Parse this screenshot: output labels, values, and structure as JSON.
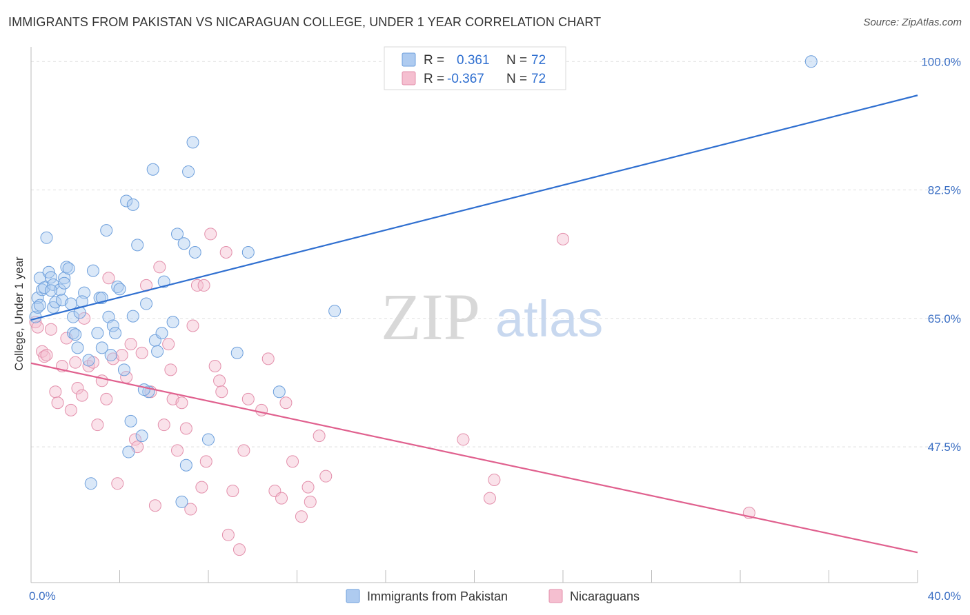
{
  "title": "IMMIGRANTS FROM PAKISTAN VS NICARAGUAN COLLEGE, UNDER 1 YEAR CORRELATION CHART",
  "source": "Source: ZipAtlas.com",
  "colors": {
    "blue_fill": "#aecbf0",
    "blue_stroke": "#6d9fdc",
    "blue_line": "#2f6fd0",
    "pink_fill": "#f5bfd0",
    "pink_stroke": "#e38fab",
    "pink_line": "#e0608e",
    "axis_text": "#3b6fc4",
    "grid": "#dddddd"
  },
  "legend": {
    "rows": [
      {
        "r_label": "R =",
        "r_value": "0.361",
        "n_label": "N =",
        "n_value": "72"
      },
      {
        "r_label": "R =",
        "r_value": "-0.367",
        "n_label": "N =",
        "n_value": "72"
      }
    ]
  },
  "watermark": {
    "part1": "ZIP",
    "part2": "atlas"
  },
  "chart_data": {
    "type": "scatter",
    "xlabel": "",
    "ylabel": "College, Under 1 year",
    "xlim": [
      0,
      40
    ],
    "ylim": [
      29,
      102
    ],
    "x_tick_labels": [
      "0.0%",
      "40.0%"
    ],
    "y_ticks": [
      47.5,
      65.0,
      82.5,
      100.0
    ],
    "y_tick_labels": [
      "47.5%",
      "65.0%",
      "82.5%",
      "100.0%"
    ],
    "grid": true,
    "series": [
      {
        "name": "Immigrants from Pakistan",
        "color": "blue",
        "trend": {
          "x": [
            0,
            40
          ],
          "y": [
            64.8,
            95.4
          ]
        },
        "points": [
          [
            0.2,
            65.2
          ],
          [
            0.3,
            67.8
          ],
          [
            0.3,
            66.5
          ],
          [
            0.4,
            70.5
          ],
          [
            0.5,
            68.9
          ],
          [
            0.6,
            69.2
          ],
          [
            0.7,
            76.0
          ],
          [
            0.8,
            71.3
          ],
          [
            0.9,
            70.6
          ],
          [
            1.0,
            69.6
          ],
          [
            1.0,
            66.5
          ],
          [
            1.1,
            67.2
          ],
          [
            1.3,
            68.9
          ],
          [
            1.4,
            67.5
          ],
          [
            1.5,
            70.5
          ],
          [
            1.6,
            72.0
          ],
          [
            1.7,
            71.8
          ],
          [
            1.8,
            67.0
          ],
          [
            1.9,
            65.2
          ],
          [
            1.9,
            63.0
          ],
          [
            2.1,
            61.0
          ],
          [
            2.2,
            65.8
          ],
          [
            2.4,
            68.5
          ],
          [
            2.3,
            67.3
          ],
          [
            2.6,
            59.3
          ],
          [
            2.8,
            71.5
          ],
          [
            3.0,
            63.0
          ],
          [
            3.1,
            67.8
          ],
          [
            3.2,
            61.0
          ],
          [
            3.2,
            67.8
          ],
          [
            3.4,
            77.0
          ],
          [
            3.5,
            65.2
          ],
          [
            3.7,
            64.0
          ],
          [
            3.8,
            63.0
          ],
          [
            3.9,
            69.3
          ],
          [
            4.0,
            69.0
          ],
          [
            4.2,
            58.0
          ],
          [
            4.3,
            81.0
          ],
          [
            4.6,
            80.5
          ],
          [
            4.6,
            65.3
          ],
          [
            4.4,
            46.8
          ],
          [
            4.5,
            51.0
          ],
          [
            4.8,
            75.0
          ],
          [
            5.0,
            49.0
          ],
          [
            5.3,
            55.0
          ],
          [
            5.2,
            67.0
          ],
          [
            5.5,
            85.3
          ],
          [
            5.6,
            62.0
          ],
          [
            5.7,
            60.5
          ],
          [
            5.9,
            63.0
          ],
          [
            6.0,
            70.0
          ],
          [
            6.4,
            64.5
          ],
          [
            6.6,
            76.5
          ],
          [
            6.9,
            75.2
          ],
          [
            7.0,
            45.0
          ],
          [
            7.1,
            85.0
          ],
          [
            7.3,
            89.0
          ],
          [
            7.4,
            74.0
          ],
          [
            9.3,
            60.3
          ],
          [
            9.8,
            74.0
          ],
          [
            11.2,
            55.0
          ],
          [
            13.7,
            66.0
          ],
          [
            2.7,
            42.5
          ],
          [
            6.8,
            40.0
          ],
          [
            1.5,
            69.8
          ],
          [
            0.4,
            66.8
          ],
          [
            0.9,
            68.8
          ],
          [
            2.0,
            62.8
          ],
          [
            3.6,
            60.0
          ],
          [
            5.1,
            55.3
          ],
          [
            8.0,
            48.5
          ],
          [
            35.2,
            100.0
          ]
        ]
      },
      {
        "name": "Nicaraguans",
        "color": "pink",
        "trend": {
          "x": [
            0,
            40
          ],
          "y": [
            58.9,
            33.1
          ]
        },
        "points": [
          [
            0.2,
            64.5
          ],
          [
            0.3,
            63.8
          ],
          [
            0.5,
            60.5
          ],
          [
            0.6,
            59.8
          ],
          [
            0.7,
            60.0
          ],
          [
            0.9,
            63.5
          ],
          [
            1.1,
            55.0
          ],
          [
            1.2,
            53.5
          ],
          [
            1.4,
            58.5
          ],
          [
            1.6,
            62.3
          ],
          [
            1.8,
            52.5
          ],
          [
            2.0,
            59.0
          ],
          [
            2.1,
            55.5
          ],
          [
            2.3,
            54.5
          ],
          [
            2.4,
            65.0
          ],
          [
            2.6,
            58.5
          ],
          [
            2.8,
            59.0
          ],
          [
            3.0,
            50.5
          ],
          [
            3.2,
            56.5
          ],
          [
            3.4,
            54.0
          ],
          [
            3.5,
            70.5
          ],
          [
            3.7,
            59.5
          ],
          [
            3.9,
            42.5
          ],
          [
            4.1,
            60.0
          ],
          [
            4.3,
            57.0
          ],
          [
            4.5,
            61.5
          ],
          [
            4.7,
            48.5
          ],
          [
            4.8,
            47.5
          ],
          [
            5.0,
            60.3
          ],
          [
            5.2,
            69.5
          ],
          [
            5.4,
            55.0
          ],
          [
            5.6,
            39.5
          ],
          [
            5.8,
            72.0
          ],
          [
            6.0,
            50.5
          ],
          [
            6.2,
            61.5
          ],
          [
            6.3,
            58.0
          ],
          [
            6.4,
            54.0
          ],
          [
            6.6,
            47.0
          ],
          [
            6.8,
            53.5
          ],
          [
            7.0,
            50.0
          ],
          [
            7.2,
            39.0
          ],
          [
            7.3,
            64.0
          ],
          [
            7.5,
            69.5
          ],
          [
            7.7,
            42.0
          ],
          [
            7.8,
            69.5
          ],
          [
            7.9,
            45.5
          ],
          [
            8.1,
            76.5
          ],
          [
            8.3,
            58.5
          ],
          [
            8.5,
            56.5
          ],
          [
            8.6,
            55.0
          ],
          [
            8.8,
            74.0
          ],
          [
            8.9,
            35.5
          ],
          [
            9.1,
            41.5
          ],
          [
            9.4,
            33.5
          ],
          [
            9.6,
            47.0
          ],
          [
            9.8,
            54.0
          ],
          [
            10.4,
            52.5
          ],
          [
            10.7,
            59.5
          ],
          [
            11.0,
            41.5
          ],
          [
            11.3,
            40.5
          ],
          [
            11.5,
            53.5
          ],
          [
            11.8,
            45.5
          ],
          [
            12.2,
            38.0
          ],
          [
            12.5,
            42.0
          ],
          [
            12.6,
            40.0
          ],
          [
            13.0,
            49.0
          ],
          [
            13.3,
            43.5
          ],
          [
            19.5,
            48.5
          ],
          [
            20.7,
            40.5
          ],
          [
            20.9,
            43.0
          ],
          [
            24.0,
            75.8
          ],
          [
            32.4,
            38.5
          ]
        ]
      }
    ]
  },
  "bottom_legend": {
    "items": [
      "Immigrants from Pakistan",
      "Nicaraguans"
    ]
  }
}
